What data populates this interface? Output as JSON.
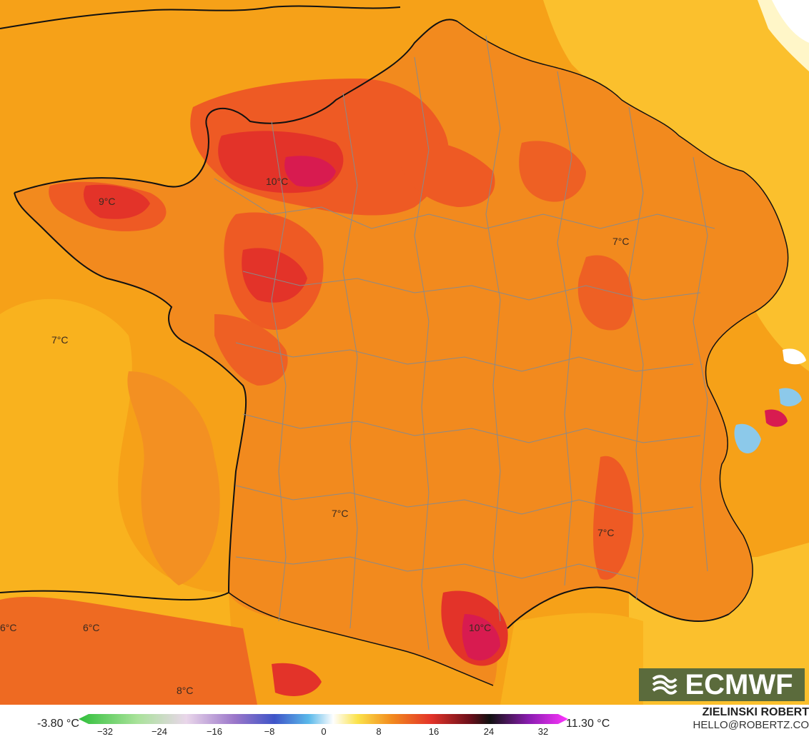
{
  "map": {
    "labels": [
      {
        "text": "10°C"
      },
      {
        "text": "9°C"
      },
      {
        "text": "7°C"
      },
      {
        "text": "7°C"
      },
      {
        "text": "7°C"
      },
      {
        "text": "7°C"
      },
      {
        "text": "6°C"
      },
      {
        "text": "6°C"
      },
      {
        "text": "8°C"
      },
      {
        "text": "10°C"
      }
    ]
  },
  "logo": {
    "text": "ECMWF"
  },
  "legend": {
    "min_label": "-3.80 °C",
    "max_label": "11.30 °C",
    "ticks": [
      "−32",
      "−24",
      "−16",
      "−8",
      "0",
      "8",
      "16",
      "24",
      "32"
    ]
  },
  "credit": {
    "name": "ZIELINSKI ROBERT",
    "email": "HELLO@ROBERTZ.CO"
  },
  "colors": {
    "sea": "#f7a11a",
    "land": "#f28a1e",
    "warm": "#ee5a24",
    "hot": "#e33329",
    "hottest": "#d81b50",
    "alpine_cold": "#8cc9ea",
    "north_yellow": "#fbc02d"
  }
}
